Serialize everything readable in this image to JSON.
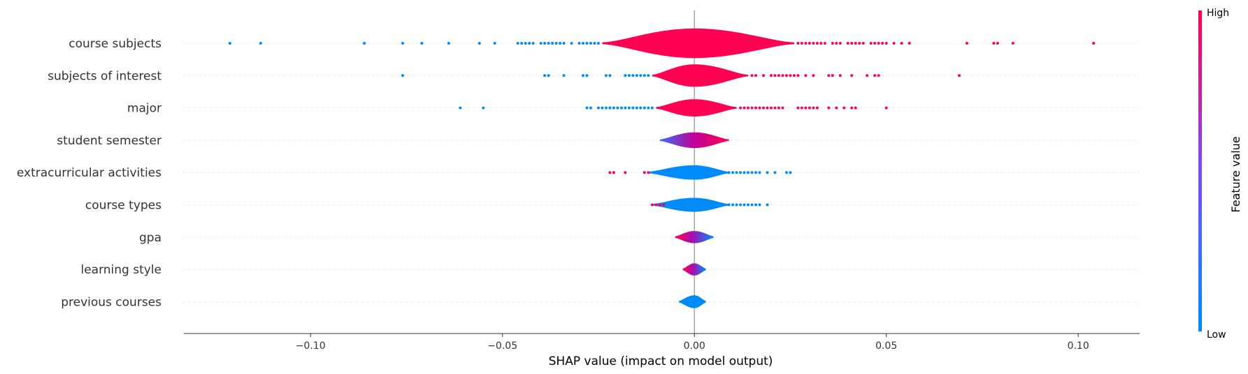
{
  "chart_data": {
    "type": "violin",
    "xlabel": "SHAP value (impact on model output)",
    "xlim": [
      -0.133,
      0.116
    ],
    "xticks": [
      {
        "value": -0.1,
        "label": "−0.10"
      },
      {
        "value": -0.05,
        "label": "−0.05"
      },
      {
        "value": 0.0,
        "label": "0.00"
      },
      {
        "value": 0.05,
        "label": "0.05"
      },
      {
        "value": 0.1,
        "label": "0.10"
      }
    ],
    "features": [
      {
        "name": "course subjects",
        "width": 1.0,
        "core_min": -0.024,
        "core_max": 0.026,
        "min": -0.121,
        "max": 0.104,
        "low_dots": [
          -0.121,
          -0.113,
          -0.086,
          -0.076,
          -0.071,
          -0.064,
          -0.056,
          -0.052,
          -0.046,
          -0.045,
          -0.044,
          -0.043,
          -0.042,
          -0.04,
          -0.039,
          -0.038,
          -0.037,
          -0.036,
          -0.035,
          -0.034,
          -0.032,
          -0.03,
          -0.029,
          -0.028,
          -0.027,
          -0.026,
          -0.025
        ],
        "high_dots": [
          0.027,
          0.028,
          0.029,
          0.03,
          0.031,
          0.032,
          0.033,
          0.034,
          0.036,
          0.037,
          0.038,
          0.04,
          0.041,
          0.042,
          0.043,
          0.044,
          0.046,
          0.047,
          0.048,
          0.049,
          0.05,
          0.052,
          0.054,
          0.056,
          0.071,
          0.078,
          0.079,
          0.083,
          0.104
        ]
      },
      {
        "name": "subjects of interest",
        "width": 0.68,
        "core_min": -0.011,
        "core_max": 0.014,
        "min": -0.076,
        "max": 0.069,
        "low_dots": [
          -0.076,
          -0.039,
          -0.038,
          -0.034,
          -0.029,
          -0.028,
          -0.023,
          -0.022,
          -0.018,
          -0.017,
          -0.016,
          -0.015,
          -0.014,
          -0.013,
          -0.012
        ],
        "high_dots": [
          0.015,
          0.016,
          0.018,
          0.02,
          0.021,
          0.022,
          0.023,
          0.024,
          0.025,
          0.026,
          0.027,
          0.029,
          0.031,
          0.035,
          0.036,
          0.038,
          0.041,
          0.045,
          0.047,
          0.048,
          0.069
        ]
      },
      {
        "name": "major",
        "width": 0.45,
        "core_min": -0.01,
        "core_max": 0.011,
        "min": -0.061,
        "max": 0.05,
        "low_dots": [
          -0.061,
          -0.055,
          -0.028,
          -0.027,
          -0.025,
          -0.024,
          -0.023,
          -0.022,
          -0.021,
          -0.02,
          -0.019,
          -0.018,
          -0.017,
          -0.016,
          -0.015,
          -0.014,
          -0.013,
          -0.012,
          -0.011
        ],
        "high_dots": [
          0.012,
          0.013,
          0.014,
          0.015,
          0.016,
          0.017,
          0.018,
          0.019,
          0.02,
          0.021,
          0.022,
          0.023,
          0.027,
          0.028,
          0.029,
          0.03,
          0.031,
          0.032,
          0.035,
          0.037,
          0.039,
          0.041,
          0.042,
          0.05
        ]
      },
      {
        "name": "student semester",
        "width": 0.38,
        "core_min": -0.009,
        "core_max": 0.009,
        "min": -0.009,
        "max": 0.009,
        "low_dots": [],
        "high_dots": []
      },
      {
        "name": "extracurricular activities",
        "width": 0.32,
        "core_min": -0.012,
        "core_max": 0.009,
        "min": -0.022,
        "max": 0.025,
        "low_dots": [
          0.009,
          0.01,
          0.011,
          0.012,
          0.013,
          0.014,
          0.015,
          0.016,
          0.017,
          0.019,
          0.021,
          0.024,
          0.025
        ],
        "high_dots": [
          -0.022,
          -0.021,
          -0.018,
          -0.013,
          -0.012
        ]
      },
      {
        "name": "course types",
        "width": 0.3,
        "core_min": -0.011,
        "core_max": 0.009,
        "min": -0.011,
        "max": 0.019,
        "low_dots": [
          0.009,
          0.01,
          0.011,
          0.012,
          0.013,
          0.014,
          0.015,
          0.016,
          0.017,
          0.019
        ],
        "high_dots": [
          -0.011,
          -0.01,
          -0.009,
          -0.008
        ]
      },
      {
        "name": "gpa",
        "width": 0.22,
        "core_min": -0.005,
        "core_max": 0.005,
        "min": -0.005,
        "max": 0.005,
        "low_dots": [],
        "high_dots": []
      },
      {
        "name": "learning style",
        "width": 0.22,
        "core_min": -0.003,
        "core_max": 0.003,
        "min": -0.003,
        "max": 0.003,
        "low_dots": [],
        "high_dots": []
      },
      {
        "name": "previous courses",
        "width": 0.25,
        "core_min": -0.004,
        "core_max": 0.003,
        "min": -0.004,
        "max": 0.003,
        "low_dots": [],
        "high_dots": []
      }
    ],
    "colorbar": {
      "title": "Feature value",
      "high_label": "High",
      "low_label": "Low",
      "high_color": "#ff0052",
      "low_color": "#008bfb"
    },
    "grid": "horizontal dotted per feature"
  }
}
